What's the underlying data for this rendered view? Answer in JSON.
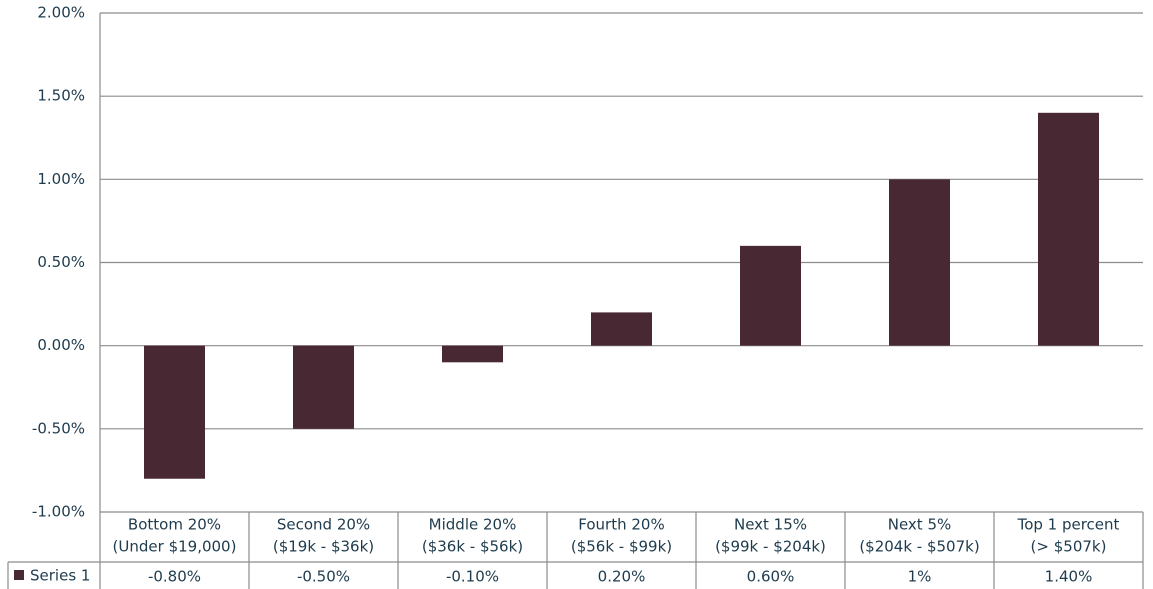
{
  "chart_data": {
    "type": "bar",
    "categories": [
      [
        "Bottom 20%",
        "(Under $19,000)"
      ],
      [
        "Second 20%",
        "($19k - $36k)"
      ],
      [
        "Middle 20%",
        "($36k - $56k)"
      ],
      [
        "Fourth 20%",
        "($56k - $99k)"
      ],
      [
        "Next 15%",
        "($99k - $204k)"
      ],
      [
        "Next 5%",
        "($204k - $507k)"
      ],
      [
        "Top 1 percent",
        "(> $507k)"
      ]
    ],
    "series": [
      {
        "name": "Series 1",
        "color": "#482832",
        "values": [
          -0.8,
          -0.5,
          -0.1,
          0.2,
          0.6,
          1,
          1.4
        ],
        "value_labels": [
          "-0.80%",
          "-0.50%",
          "-0.10%",
          "0.20%",
          "0.60%",
          "1%",
          "1.40%"
        ]
      }
    ],
    "ylim": [
      -1,
      2
    ],
    "yticks": [
      {
        "value": -1,
        "label": "-1.00%"
      },
      {
        "value": -0.5,
        "label": "-0.50%"
      },
      {
        "value": 0,
        "label": "0.00%"
      },
      {
        "value": 0.5,
        "label": "0.50%"
      },
      {
        "value": 1,
        "label": "1.00%"
      },
      {
        "value": 1.5,
        "label": "1.50%"
      },
      {
        "value": 2,
        "label": "2.00%"
      }
    ],
    "grid": true
  }
}
